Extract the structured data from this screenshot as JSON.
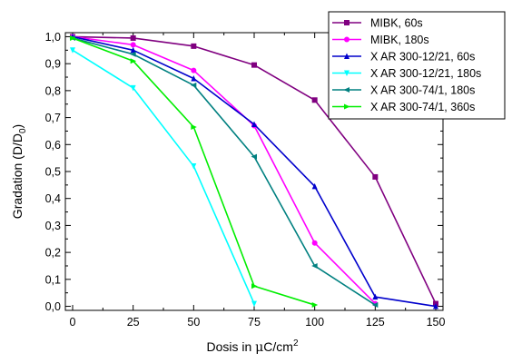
{
  "chart_data": {
    "type": "line",
    "title": "",
    "xlabel": "Dosis in μC/cm²",
    "xlabel_parts": {
      "prefix": "Dosis in ",
      "mu": "μ",
      "unit": "C/cm",
      "sup": "2"
    },
    "ylabel": "Gradation (D/D₀)",
    "ylabel_parts": {
      "prefix": "Gradation (D/D",
      "sub": "0",
      "suffix": ")"
    },
    "xlim": [
      -3,
      153
    ],
    "ylim": [
      -0.015,
      1.015
    ],
    "x_ticks": [
      0,
      25,
      50,
      75,
      100,
      125,
      150
    ],
    "x_tick_labels": [
      "0",
      "25",
      "50",
      "75",
      "100",
      "125",
      "150"
    ],
    "y_ticks": [
      0.0,
      0.1,
      0.2,
      0.3,
      0.4,
      0.5,
      0.6,
      0.7,
      0.8,
      0.9,
      1.0
    ],
    "y_tick_labels": [
      "0,0",
      "0,1",
      "0,2",
      "0,3",
      "0,4",
      "0,5",
      "0,6",
      "0,7",
      "0,8",
      "0,9",
      "1,0"
    ],
    "grid": false,
    "legend_position": "top-right",
    "series": [
      {
        "name": "MIBK, 60s",
        "color": "#800080",
        "marker": "square",
        "x": [
          0,
          25,
          50,
          75,
          100,
          125,
          150
        ],
        "y": [
          1.0,
          0.995,
          0.965,
          0.895,
          0.765,
          0.48,
          0.01
        ]
      },
      {
        "name": "MIBK, 180s",
        "color": "#ff00ff",
        "marker": "circle",
        "x": [
          0,
          25,
          50,
          75,
          100,
          125
        ],
        "y": [
          1.0,
          0.97,
          0.875,
          0.67,
          0.235,
          0.01
        ]
      },
      {
        "name": "X AR 300-12/21, 60s",
        "color": "#0000cc",
        "marker": "triangle-up",
        "x": [
          0,
          25,
          50,
          75,
          100,
          125,
          150
        ],
        "y": [
          1.0,
          0.95,
          0.845,
          0.675,
          0.445,
          0.035,
          0.0
        ]
      },
      {
        "name": "X AR 300-12/21, 180s",
        "color": "#00ffff",
        "marker": "triangle-down",
        "x": [
          0,
          25,
          50,
          75
        ],
        "y": [
          0.95,
          0.81,
          0.52,
          0.01
        ]
      },
      {
        "name": "X AR 300-74/1, 180s",
        "color": "#008080",
        "marker": "triangle-left",
        "x": [
          0,
          25,
          50,
          75,
          100,
          125
        ],
        "y": [
          0.995,
          0.935,
          0.82,
          0.555,
          0.15,
          0.005
        ]
      },
      {
        "name": "X AR 300-74/1, 360s",
        "color": "#00ee00",
        "marker": "triangle-right",
        "x": [
          0,
          25,
          50,
          75,
          100
        ],
        "y": [
          0.995,
          0.91,
          0.665,
          0.075,
          0.005
        ]
      }
    ]
  }
}
